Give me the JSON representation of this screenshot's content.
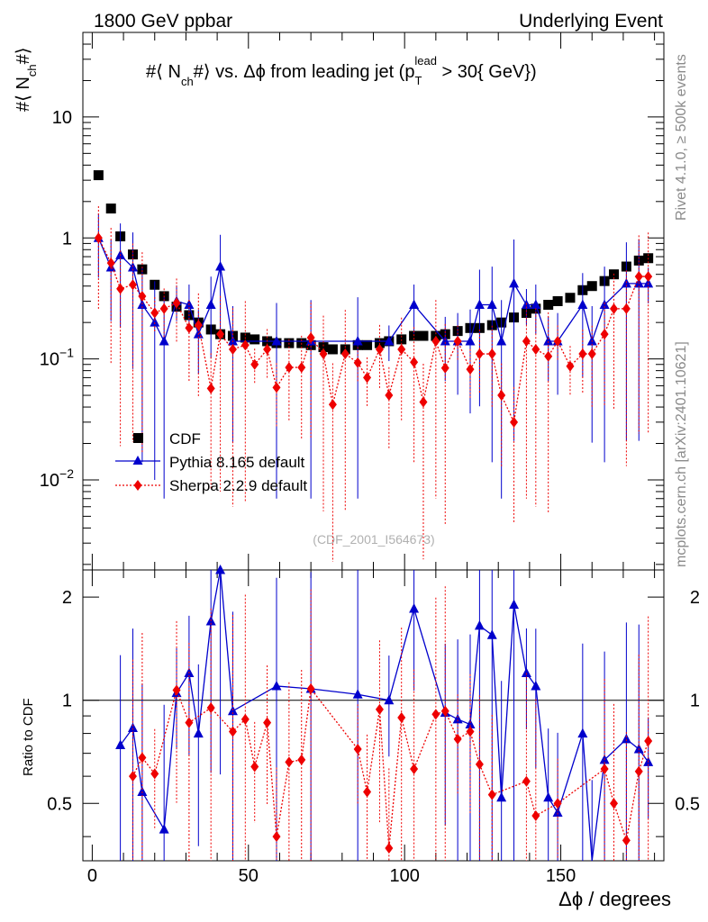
{
  "header": {
    "left": "1800 GeV ppbar",
    "right": "Underlying Event",
    "side_top": "Rivet 4.1.0, ≥ 500k events",
    "side_bottom": "mcplots.cern.ch [arXiv:2401.10621]"
  },
  "main": {
    "title": "#⟨ N_ch#⟩ vs. Δϕ from leading jet (p_T^lead > 30{ GeV})",
    "title_parts": {
      "pre": "#⟨ N",
      "sub": "ch",
      "mid": "#⟩ vs. Δϕ from leading jet  (p",
      "sub2": "T",
      "sup2": "lead",
      "post": " > 30{ GeV})"
    },
    "ylabel_pre": "#⟨ N",
    "ylabel_sub": "ch",
    "ylabel_post": "#⟩",
    "watermark": "(CDF_2001_I564673)",
    "y_ticks": [
      {
        "base": "10",
        "exp": "",
        "label": "10",
        "value": 10
      },
      {
        "base": "1",
        "exp": "",
        "label": "1",
        "value": 1
      },
      {
        "base": "10",
        "exp": "−1",
        "label": "10^-1",
        "value": 0.1
      },
      {
        "base": "10",
        "exp": "−2",
        "label": "10^-2",
        "value": 0.01
      }
    ]
  },
  "ratio": {
    "ylabel": "Ratio to CDF",
    "y_ticks": [
      "0.5",
      "1",
      "2"
    ],
    "y_tick_values": [
      0.5,
      1,
      2
    ]
  },
  "xaxis": {
    "label": "Δϕ / degrees",
    "ticks": [
      "0",
      "50",
      "100",
      "150"
    ],
    "tick_values": [
      0,
      50,
      100,
      150
    ]
  },
  "legend": [
    {
      "name": "CDF",
      "color": "#000000",
      "marker": "square"
    },
    {
      "name": "Pythia 8.165 default",
      "color": "#0000cc",
      "marker": "triangle"
    },
    {
      "name": "Sherpa 2.2.9 default",
      "color": "#ee0000",
      "marker": "diamond"
    }
  ],
  "chart_data": {
    "type": "scatter",
    "title": "#⟨ N_ch#⟩ vs. Δϕ from leading jet (p_T^lead > 30{ GeV})",
    "xlabel": "Δϕ / degrees",
    "ylabel": "#⟨ N_ch#⟩",
    "ratio_ylabel": "Ratio to CDF",
    "xlim": [
      -3,
      183
    ],
    "ylim": [
      0.0018,
      50
    ],
    "yscale": "log",
    "ratio_ylim": [
      0.34,
      2.4
    ],
    "ratio_yscale": "log",
    "series": [
      {
        "name": "CDF",
        "x": [
          2,
          6,
          9,
          13,
          16,
          20,
          23,
          27,
          31,
          34,
          38,
          41,
          45,
          49,
          52,
          56,
          59,
          63,
          67,
          70,
          74,
          77,
          81,
          85,
          88,
          92,
          95,
          99,
          103,
          106,
          110,
          113,
          117,
          121,
          124,
          128,
          131,
          135,
          139,
          142,
          146,
          149,
          153,
          157,
          160,
          164,
          167,
          171,
          175,
          178
        ],
        "y": [
          3.3,
          1.75,
          1.03,
          0.73,
          0.55,
          0.41,
          0.33,
          0.27,
          0.23,
          0.2,
          0.175,
          0.16,
          0.155,
          0.15,
          0.145,
          0.14,
          0.135,
          0.135,
          0.135,
          0.13,
          0.125,
          0.12,
          0.12,
          0.13,
          0.13,
          0.135,
          0.14,
          0.145,
          0.155,
          0.155,
          0.155,
          0.16,
          0.17,
          0.18,
          0.18,
          0.19,
          0.2,
          0.22,
          0.24,
          0.26,
          0.28,
          0.3,
          0.32,
          0.37,
          0.4,
          0.44,
          0.5,
          0.58,
          0.65,
          0.68
        ]
      },
      {
        "name": "Pythia 8.165 default",
        "x": [
          2,
          6,
          9,
          13,
          16,
          20,
          23,
          27,
          31,
          34,
          38,
          41,
          45,
          59,
          70,
          85,
          95,
          103,
          113,
          117,
          121,
          124,
          128,
          131,
          135,
          139,
          142,
          146,
          149,
          157,
          160,
          164,
          171,
          175,
          178
        ],
        "y": [
          1.0,
          0.57,
          0.72,
          0.57,
          0.28,
          0.2,
          0.14,
          0.3,
          0.28,
          0.16,
          0.28,
          0.58,
          0.14,
          0.14,
          0.14,
          0.14,
          0.14,
          0.28,
          0.14,
          0.14,
          0.14,
          0.28,
          0.28,
          0.14,
          0.42,
          0.28,
          0.28,
          0.14,
          0.14,
          0.28,
          0.14,
          0.28,
          0.42,
          0.42,
          0.42
        ],
        "ratio": [
          null,
          null,
          0.74,
          0.83,
          0.54,
          null,
          0.42,
          1.05,
          1.2,
          0.8,
          1.7,
          2.4,
          0.93,
          1.1,
          1.08,
          1.04,
          1.0,
          1.85,
          0.92,
          0.88,
          0.85,
          1.65,
          1.55,
          0.52,
          1.9,
          1.2,
          1.1,
          0.52,
          0.47,
          0.8,
          0.3,
          0.67,
          0.77,
          0.72,
          0.66
        ]
      },
      {
        "name": "Sherpa 2.2.9 default",
        "x": [
          2,
          6,
          9,
          13,
          16,
          20,
          23,
          27,
          31,
          34,
          38,
          41,
          45,
          49,
          52,
          56,
          59,
          63,
          67,
          70,
          74,
          77,
          81,
          85,
          88,
          92,
          95,
          99,
          103,
          106,
          110,
          113,
          117,
          121,
          124,
          128,
          131,
          135,
          139,
          142,
          146,
          149,
          153,
          157,
          160,
          164,
          167,
          171,
          175,
          178
        ],
        "y": [
          1.0,
          0.62,
          0.38,
          0.41,
          0.33,
          0.24,
          0.26,
          0.29,
          0.18,
          0.19,
          0.057,
          0.16,
          0.12,
          0.13,
          0.09,
          0.12,
          0.058,
          0.085,
          0.085,
          0.15,
          0.11,
          0.042,
          0.11,
          0.093,
          0.07,
          0.12,
          0.05,
          0.12,
          0.094,
          0.044,
          0.14,
          0.084,
          0.14,
          0.082,
          0.11,
          0.11,
          0.05,
          0.03,
          0.14,
          0.12,
          0.105,
          0.14,
          0.087,
          0.11,
          0.11,
          0.16,
          0.26,
          0.26,
          0.48,
          0.48
        ],
        "ratio": [
          null,
          null,
          null,
          0.6,
          0.68,
          0.61,
          null,
          1.07,
          0.86,
          null,
          0.95,
          null,
          0.81,
          0.88,
          0.64,
          0.86,
          0.4,
          0.66,
          0.67,
          1.08,
          null,
          null,
          null,
          0.72,
          0.54,
          0.94,
          0.37,
          0.89,
          0.63,
          null,
          0.91,
          0.93,
          0.77,
          0.81,
          0.65,
          0.53,
          null,
          null,
          0.58,
          0.46,
          null,
          0.5,
          null,
          null,
          null,
          0.63,
          0.5,
          0.39,
          0.62,
          0.76
        ]
      }
    ]
  }
}
